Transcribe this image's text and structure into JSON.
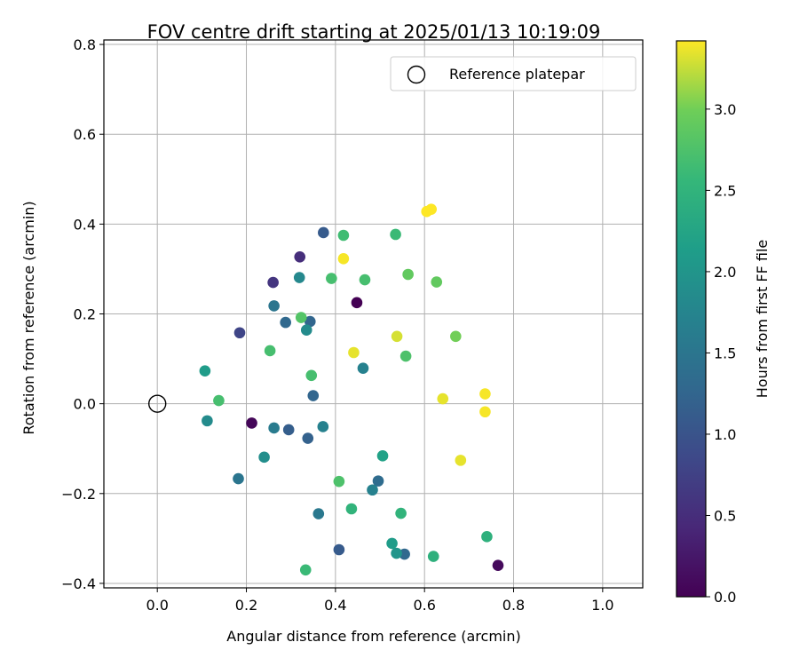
{
  "chart_data": {
    "type": "scatter",
    "title": "FOV centre drift starting at 2025/01/13 10:19:09",
    "xlabel": "Angular distance from reference (arcmin)",
    "ylabel": "Rotation from reference (arcmin)",
    "xlim": [
      -0.12,
      1.09
    ],
    "ylim": [
      -0.41,
      0.81
    ],
    "xticks": [
      0.0,
      0.2,
      0.4,
      0.6,
      0.8,
      1.0
    ],
    "xtick_labels": [
      "0.0",
      "0.2",
      "0.4",
      "0.6",
      "0.8",
      "1.0"
    ],
    "yticks": [
      -0.4,
      -0.2,
      0.0,
      0.2,
      0.4,
      0.6,
      0.8
    ],
    "ytick_labels": [
      "−0.4",
      "−0.2",
      "0.0",
      "0.2",
      "0.4",
      "0.6",
      "0.8"
    ],
    "grid": true,
    "legend": {
      "position": "top-right",
      "entries": [
        "Reference platepar"
      ]
    },
    "reference_point": {
      "x": 0.0,
      "y": 0.0,
      "label": "Reference platepar"
    },
    "colorbar": {
      "label": "Hours from first FF file",
      "colormap": "viridis",
      "range": [
        0.0,
        3.42
      ],
      "ticks": [
        0.0,
        0.5,
        1.0,
        1.5,
        2.0,
        2.5,
        3.0
      ],
      "tick_labels": [
        "0.0",
        "0.5",
        "1.0",
        "1.5",
        "2.0",
        "2.5",
        "3.0"
      ]
    },
    "points": [
      {
        "x": 0.448,
        "y": 0.225,
        "c": 0.0
      },
      {
        "x": 0.212,
        "y": -0.043,
        "c": 0.05
      },
      {
        "x": 0.765,
        "y": -0.36,
        "c": 0.1
      },
      {
        "x": 0.32,
        "y": 0.327,
        "c": 0.5
      },
      {
        "x": 0.26,
        "y": 0.27,
        "c": 0.6
      },
      {
        "x": 0.185,
        "y": 0.158,
        "c": 0.8
      },
      {
        "x": 0.373,
        "y": 0.381,
        "c": 1.1
      },
      {
        "x": 0.408,
        "y": -0.325,
        "c": 1.1
      },
      {
        "x": 0.295,
        "y": -0.058,
        "c": 1.15
      },
      {
        "x": 0.338,
        "y": -0.077,
        "c": 1.2
      },
      {
        "x": 0.343,
        "y": 0.183,
        "c": 1.25
      },
      {
        "x": 0.35,
        "y": 0.018,
        "c": 1.25
      },
      {
        "x": 0.288,
        "y": 0.181,
        "c": 1.3
      },
      {
        "x": 0.555,
        "y": -0.335,
        "c": 1.3
      },
      {
        "x": 0.496,
        "y": -0.172,
        "c": 1.35
      },
      {
        "x": 0.262,
        "y": 0.218,
        "c": 1.5
      },
      {
        "x": 0.182,
        "y": -0.167,
        "c": 1.5
      },
      {
        "x": 0.362,
        "y": -0.245,
        "c": 1.55
      },
      {
        "x": 0.262,
        "y": -0.054,
        "c": 1.6
      },
      {
        "x": 0.372,
        "y": -0.051,
        "c": 1.7
      },
      {
        "x": 0.462,
        "y": 0.079,
        "c": 1.7
      },
      {
        "x": 0.483,
        "y": -0.192,
        "c": 1.7
      },
      {
        "x": 0.319,
        "y": 0.281,
        "c": 1.8
      },
      {
        "x": 0.335,
        "y": 0.164,
        "c": 1.85
      },
      {
        "x": 0.112,
        "y": -0.038,
        "c": 1.85
      },
      {
        "x": 0.24,
        "y": -0.119,
        "c": 1.9
      },
      {
        "x": 0.537,
        "y": -0.333,
        "c": 2.0
      },
      {
        "x": 0.527,
        "y": -0.311,
        "c": 2.1
      },
      {
        "x": 0.107,
        "y": 0.073,
        "c": 2.1
      },
      {
        "x": 0.506,
        "y": -0.116,
        "c": 2.2
      },
      {
        "x": 0.62,
        "y": -0.34,
        "c": 2.45
      },
      {
        "x": 0.74,
        "y": -0.296,
        "c": 2.45
      },
      {
        "x": 0.436,
        "y": -0.234,
        "c": 2.5
      },
      {
        "x": 0.547,
        "y": -0.244,
        "c": 2.5
      },
      {
        "x": 0.535,
        "y": 0.377,
        "c": 2.6
      },
      {
        "x": 0.333,
        "y": -0.37,
        "c": 2.6
      },
      {
        "x": 0.418,
        "y": 0.375,
        "c": 2.65
      },
      {
        "x": 0.391,
        "y": 0.279,
        "c": 2.7
      },
      {
        "x": 0.466,
        "y": 0.276,
        "c": 2.7
      },
      {
        "x": 0.346,
        "y": 0.063,
        "c": 2.7
      },
      {
        "x": 0.253,
        "y": 0.118,
        "c": 2.7
      },
      {
        "x": 0.138,
        "y": 0.007,
        "c": 2.7
      },
      {
        "x": 0.408,
        "y": -0.173,
        "c": 2.75
      },
      {
        "x": 0.323,
        "y": 0.192,
        "c": 2.8
      },
      {
        "x": 0.558,
        "y": 0.106,
        "c": 2.75
      },
      {
        "x": 0.563,
        "y": 0.288,
        "c": 2.9
      },
      {
        "x": 0.627,
        "y": 0.271,
        "c": 2.9
      },
      {
        "x": 0.67,
        "y": 0.15,
        "c": 3.0
      },
      {
        "x": 0.538,
        "y": 0.15,
        "c": 3.3
      },
      {
        "x": 0.441,
        "y": 0.114,
        "c": 3.35
      },
      {
        "x": 0.641,
        "y": 0.011,
        "c": 3.35
      },
      {
        "x": 0.681,
        "y": -0.126,
        "c": 3.35
      },
      {
        "x": 0.418,
        "y": 0.323,
        "c": 3.4
      },
      {
        "x": 0.736,
        "y": 0.022,
        "c": 3.4
      },
      {
        "x": 0.736,
        "y": -0.018,
        "c": 3.4
      },
      {
        "x": 0.605,
        "y": 0.428,
        "c": 3.42
      },
      {
        "x": 0.615,
        "y": 0.433,
        "c": 3.42
      }
    ]
  }
}
